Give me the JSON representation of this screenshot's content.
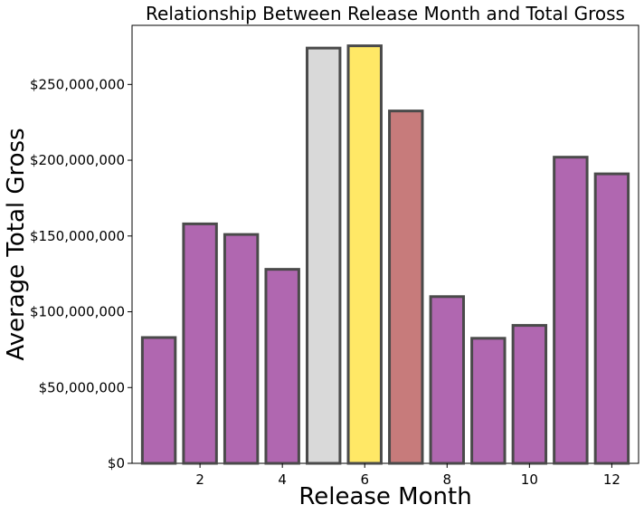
{
  "chart_data": {
    "type": "bar",
    "title": "Relationship Between Release Month and Total Gross",
    "xlabel": "Release Month",
    "ylabel": "Average Total Gross",
    "x": [
      1,
      2,
      3,
      4,
      5,
      6,
      7,
      8,
      9,
      10,
      11,
      12
    ],
    "values": [
      83000000,
      158000000,
      151000000,
      128000000,
      274000000,
      275500000,
      232500000,
      110000000,
      82500000,
      91000000,
      202000000,
      191000000
    ],
    "bar_colors": [
      "#b067b0",
      "#b067b0",
      "#b067b0",
      "#b067b0",
      "#d9d9d9",
      "#ffe866",
      "#c77b7b",
      "#b067b0",
      "#b067b0",
      "#b067b0",
      "#b067b0",
      "#b067b0"
    ],
    "edge_color": "#4a4a4a",
    "xlim": [
      0.35,
      12.65
    ],
    "ylim": [
      0,
      289000000
    ],
    "xticks": [
      2,
      4,
      6,
      8,
      10,
      12
    ],
    "xtick_labels": [
      "2",
      "4",
      "6",
      "8",
      "10",
      "12"
    ],
    "yticks": [
      0,
      50000000,
      100000000,
      150000000,
      200000000,
      250000000
    ],
    "ytick_labels": [
      "$0",
      "$50,000,000",
      "$100,000,000",
      "$150,000,000",
      "$200,000,000",
      "$250,000,000"
    ],
    "grid": false,
    "legend": "none"
  }
}
